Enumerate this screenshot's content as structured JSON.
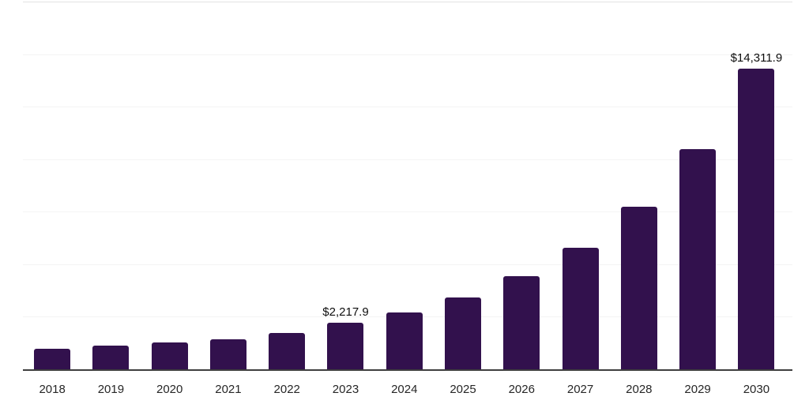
{
  "chart_data": {
    "type": "bar",
    "title": "",
    "xlabel": "",
    "ylabel": "",
    "categories": [
      "2018",
      "2019",
      "2020",
      "2021",
      "2022",
      "2023",
      "2024",
      "2025",
      "2026",
      "2027",
      "2028",
      "2029",
      "2030"
    ],
    "values": [
      990,
      1130,
      1285,
      1410,
      1740,
      2217.9,
      2695,
      3430,
      4435,
      5795,
      7740,
      10470,
      14311.9
    ],
    "value_labels": {
      "2023": "$2,217.9",
      "2030": "$14,311.9"
    },
    "ylim": [
      0,
      17500
    ],
    "gridline_step": 2500,
    "grid": true,
    "legend": "none",
    "bar_color": "#32114d",
    "data_label_color": "#0d0d0d",
    "tick_label_color": "#262626",
    "axis_line_color": "#3f3f3f",
    "gridline_color": "#f4f4f4",
    "top_gridline_color": "#e3e3e3",
    "background_color": "#ffffff"
  }
}
